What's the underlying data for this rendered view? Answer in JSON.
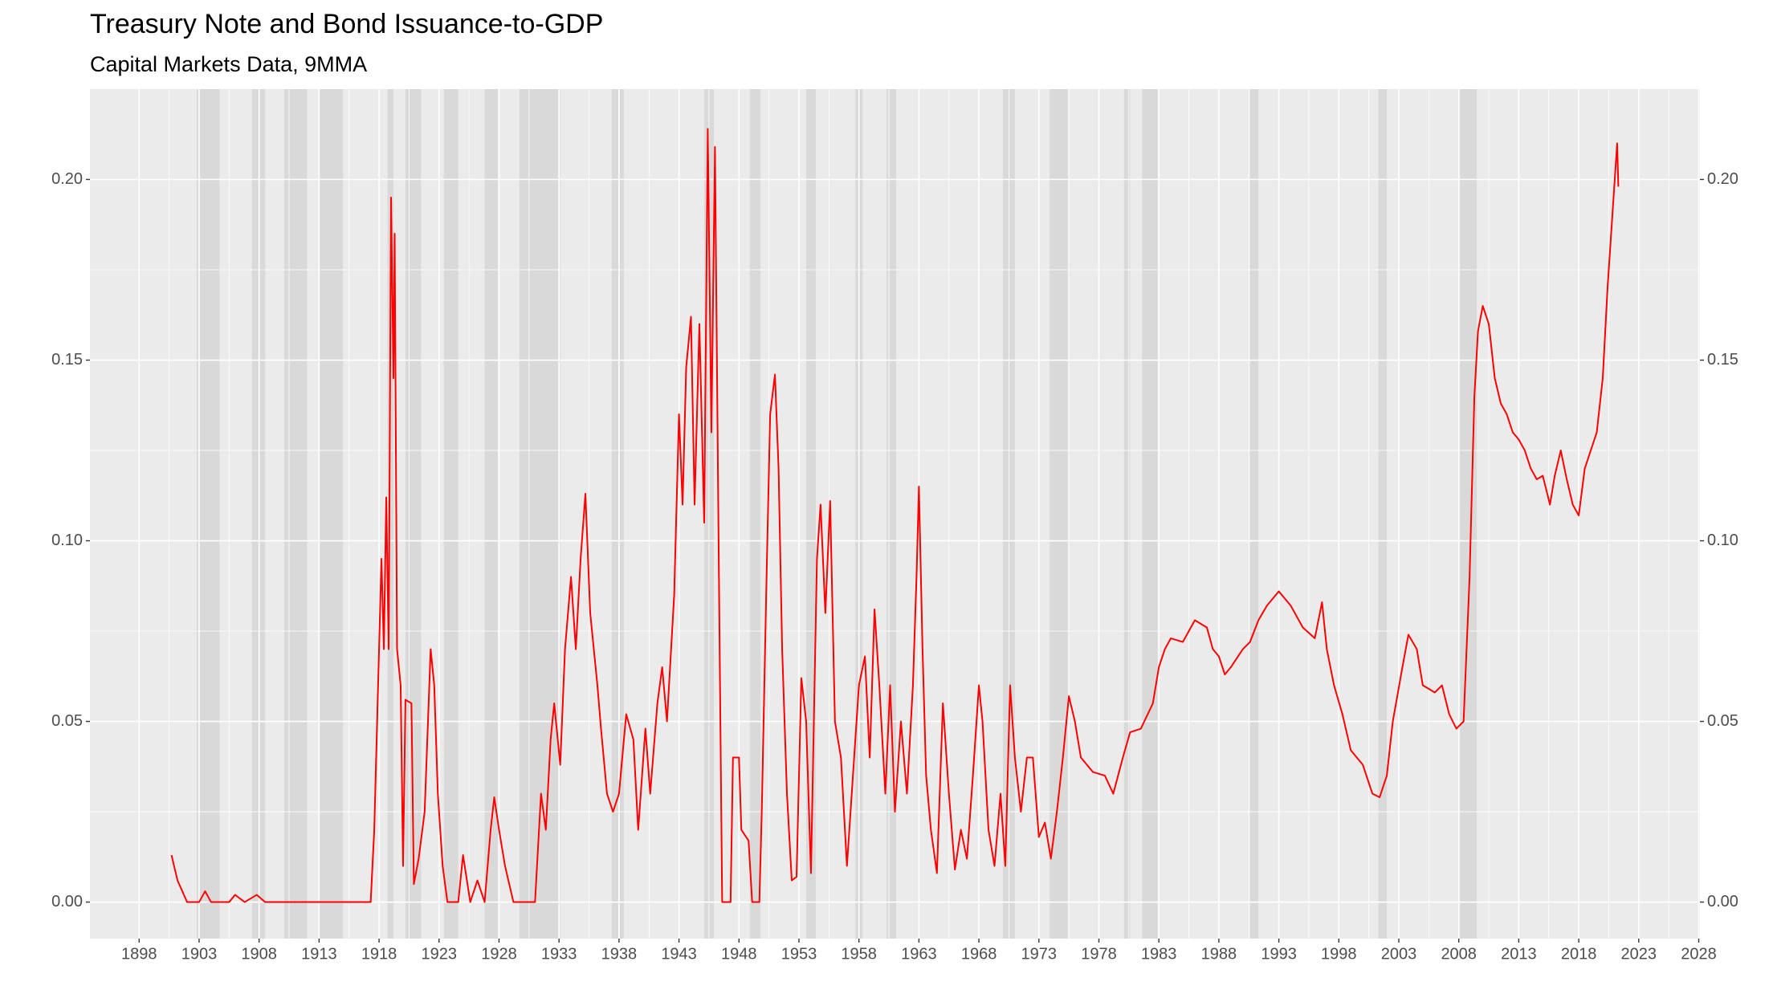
{
  "chart_data": {
    "type": "line",
    "title": "Treasury Note and Bond Issuance-to-GDP",
    "subtitle": "Capital Markets Data, 9MMA",
    "color": "#ff0000",
    "shade_color": "#d9d9d9",
    "grid": true,
    "xlim": [
      1893.9,
      2028.1
    ],
    "xticks": [
      1898,
      1903,
      1908,
      1913,
      1918,
      1923,
      1928,
      1933,
      1938,
      1943,
      1948,
      1953,
      1958,
      1963,
      1968,
      1973,
      1978,
      1983,
      1988,
      1993,
      1998,
      2003,
      2008,
      2013,
      2018,
      2023,
      2028
    ],
    "ylim": [
      -0.0101,
      0.225
    ],
    "yticks": [
      {
        "value": 0,
        "label": "0.00"
      },
      {
        "value": 0.05,
        "label": "0.05"
      },
      {
        "value": 0.1,
        "label": "0.10"
      },
      {
        "value": 0.15,
        "label": "0.15"
      },
      {
        "value": 0.2,
        "label": "0.20"
      }
    ],
    "y2lim": [
      -0.0101,
      0.225
    ],
    "y2ticks": [
      {
        "value": 0,
        "label": "0.00"
      },
      {
        "value": 0.05,
        "label": "0.05"
      },
      {
        "value": 0.1,
        "label": "0.10"
      },
      {
        "value": 0.15,
        "label": "0.15"
      },
      {
        "value": 0.2,
        "label": "0.20"
      }
    ],
    "shaded_periods": [
      [
        1902.8,
        1904.7
      ],
      [
        1907.4,
        1908.5
      ],
      [
        1910.1,
        1912.0
      ],
      [
        1913.0,
        1915.0
      ],
      [
        1918.7,
        1919.2
      ],
      [
        1920.2,
        1921.5
      ],
      [
        1923.4,
        1924.6
      ],
      [
        1926.8,
        1927.9
      ],
      [
        1929.7,
        1933.1
      ],
      [
        1937.4,
        1938.4
      ],
      [
        1945.1,
        1945.9
      ],
      [
        1948.9,
        1949.8
      ],
      [
        1953.6,
        1954.4
      ],
      [
        1957.7,
        1958.3
      ],
      [
        1960.3,
        1961.1
      ],
      [
        1970.0,
        1971.0
      ],
      [
        1973.9,
        1975.4
      ],
      [
        1980.1,
        1980.6
      ],
      [
        1981.6,
        1982.9
      ],
      [
        1990.6,
        1991.3
      ],
      [
        2001.3,
        2002.0
      ],
      [
        2008.1,
        2009.5
      ]
    ],
    "x": [
      1900.7,
      1901.2,
      1902.0,
      1903.0,
      1903.5,
      1904.0,
      1905.5,
      1906.0,
      1906.8,
      1907.8,
      1908.5,
      1917.3,
      1917.6,
      1918.0,
      1918.2,
      1918.4,
      1918.6,
      1918.8,
      1919.0,
      1919.2,
      1919.3,
      1919.5,
      1919.8,
      1920.0,
      1920.2,
      1920.7,
      1920.9,
      1921.3,
      1921.8,
      1922.3,
      1922.6,
      1922.9,
      1923.3,
      1923.7,
      1924.6,
      1925.0,
      1925.6,
      1926.2,
      1926.8,
      1927.3,
      1927.6,
      1928.0,
      1928.5,
      1929.2,
      1931.0,
      1931.5,
      1931.9,
      1932.3,
      1932.6,
      1933.1,
      1933.5,
      1934.0,
      1934.4,
      1934.8,
      1935.2,
      1935.6,
      1935.9,
      1936.2,
      1936.5,
      1937.0,
      1937.5,
      1938.0,
      1938.6,
      1939.2,
      1939.6,
      1940.2,
      1940.6,
      1941.2,
      1941.6,
      1942.0,
      1942.6,
      1943.0,
      1943.3,
      1943.6,
      1944.0,
      1944.3,
      1944.7,
      1945.1,
      1945.4,
      1945.7,
      1946.0,
      1946.3,
      1946.6,
      1947.3,
      1947.5,
      1948.0,
      1948.2,
      1948.8,
      1949.1,
      1949.7,
      1949.9,
      1950.3,
      1950.6,
      1951.0,
      1951.3,
      1951.6,
      1952.0,
      1952.4,
      1952.8,
      1953.2,
      1953.6,
      1954.0,
      1954.5,
      1954.8,
      1955.2,
      1955.6,
      1956.0,
      1956.5,
      1957.0,
      1957.5,
      1958.0,
      1958.5,
      1958.9,
      1959.3,
      1959.7,
      1960.2,
      1960.6,
      1961.0,
      1961.5,
      1962.0,
      1962.5,
      1962.8,
      1963.0,
      1963.3,
      1963.6,
      1964.0,
      1964.5,
      1965.0,
      1965.5,
      1966.0,
      1966.5,
      1967.0,
      1967.5,
      1968.0,
      1968.3,
      1968.8,
      1969.3,
      1969.8,
      1970.2,
      1970.6,
      1971.0,
      1971.5,
      1972.0,
      1972.5,
      1973.0,
      1973.5,
      1974.0,
      1974.5,
      1975.0,
      1975.5,
      1976.0,
      1976.5,
      1977.0,
      1977.5,
      1978.5,
      1979.2,
      1980.0,
      1980.6,
      1981.5,
      1982.5,
      1983.0,
      1983.5,
      1984.0,
      1985.0,
      1986.0,
      1987.0,
      1987.5,
      1988.0,
      1988.5,
      1989.0,
      1990.0,
      1990.6,
      1991.3,
      1992.0,
      1993.0,
      1994.0,
      1995.0,
      1996.0,
      1996.6,
      1997.0,
      1997.6,
      1998.3,
      1999.0,
      2000.0,
      2000.8,
      2001.4,
      2002.0,
      2002.5,
      2003.3,
      2003.8,
      2004.5,
      2005.0,
      2006.0,
      2006.6,
      2007.2,
      2007.8,
      2008.4,
      2008.9,
      2009.3,
      2009.6,
      2010.0,
      2010.5,
      2011.0,
      2011.5,
      2012.0,
      2012.5,
      2013.0,
      2013.5,
      2014.0,
      2014.5,
      2015.0,
      2015.6,
      2016.0,
      2016.5,
      2017.0,
      2017.5,
      2018.0,
      2018.5,
      2019.0,
      2019.5,
      2020.0,
      2020.4,
      2020.8,
      2021.0,
      2021.2,
      2021.3
    ],
    "values": [
      0.013,
      0.006,
      0.0,
      0.0,
      0.003,
      0.0,
      0.0,
      0.002,
      0.0,
      0.002,
      0.0,
      0.0,
      0.02,
      0.07,
      0.095,
      0.07,
      0.112,
      0.07,
      0.195,
      0.145,
      0.185,
      0.07,
      0.06,
      0.01,
      0.056,
      0.055,
      0.005,
      0.012,
      0.025,
      0.07,
      0.06,
      0.03,
      0.01,
      0.0,
      0.0,
      0.013,
      0.0,
      0.006,
      0.0,
      0.02,
      0.029,
      0.02,
      0.01,
      0.0,
      0.0,
      0.03,
      0.02,
      0.045,
      0.055,
      0.038,
      0.07,
      0.09,
      0.07,
      0.095,
      0.113,
      0.08,
      0.07,
      0.06,
      0.048,
      0.03,
      0.025,
      0.03,
      0.052,
      0.045,
      0.02,
      0.048,
      0.03,
      0.055,
      0.065,
      0.05,
      0.085,
      0.135,
      0.11,
      0.148,
      0.162,
      0.11,
      0.16,
      0.105,
      0.214,
      0.13,
      0.209,
      0.1,
      0.0,
      0.0,
      0.04,
      0.04,
      0.02,
      0.017,
      0.0,
      0.0,
      0.025,
      0.09,
      0.135,
      0.146,
      0.12,
      0.07,
      0.03,
      0.006,
      0.007,
      0.062,
      0.05,
      0.008,
      0.095,
      0.11,
      0.08,
      0.111,
      0.05,
      0.04,
      0.01,
      0.035,
      0.06,
      0.068,
      0.04,
      0.081,
      0.06,
      0.03,
      0.06,
      0.025,
      0.05,
      0.03,
      0.06,
      0.09,
      0.115,
      0.07,
      0.035,
      0.02,
      0.008,
      0.055,
      0.03,
      0.009,
      0.02,
      0.012,
      0.035,
      0.06,
      0.05,
      0.02,
      0.01,
      0.03,
      0.01,
      0.06,
      0.04,
      0.025,
      0.04,
      0.04,
      0.018,
      0.022,
      0.012,
      0.025,
      0.04,
      0.057,
      0.05,
      0.04,
      0.038,
      0.036,
      0.035,
      0.03,
      0.04,
      0.047,
      0.048,
      0.055,
      0.065,
      0.07,
      0.073,
      0.072,
      0.078,
      0.076,
      0.07,
      0.068,
      0.063,
      0.065,
      0.07,
      0.072,
      0.078,
      0.082,
      0.086,
      0.082,
      0.076,
      0.073,
      0.083,
      0.07,
      0.06,
      0.052,
      0.042,
      0.038,
      0.03,
      0.029,
      0.035,
      0.05,
      0.065,
      0.074,
      0.07,
      0.06,
      0.058,
      0.06,
      0.052,
      0.048,
      0.05,
      0.09,
      0.14,
      0.158,
      0.165,
      0.16,
      0.145,
      0.138,
      0.135,
      0.13,
      0.128,
      0.125,
      0.12,
      0.117,
      0.118,
      0.11,
      0.118,
      0.125,
      0.117,
      0.11,
      0.107,
      0.12,
      0.125,
      0.13,
      0.145,
      0.17,
      0.19,
      0.2,
      0.21,
      0.198
    ]
  }
}
